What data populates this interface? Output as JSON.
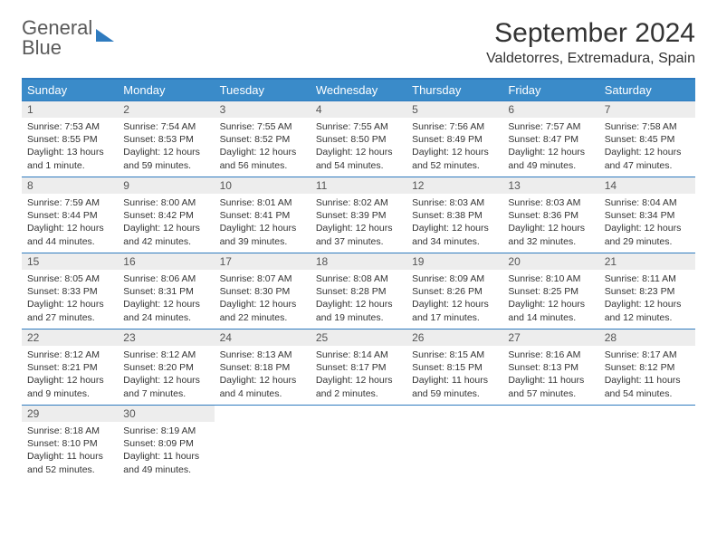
{
  "logo": {
    "text_top": "General",
    "text_bottom": "Blue"
  },
  "title": "September 2024",
  "location": "Valdetorres, Extremadura, Spain",
  "colors": {
    "header_bg": "#3a8bc9",
    "header_text": "#ffffff",
    "border": "#2f7bbf",
    "daynum_bg": "#ededed",
    "text": "#333333"
  },
  "typography": {
    "title_fontsize": 30,
    "location_fontsize": 16,
    "header_fontsize": 13,
    "body_fontsize": 10.5
  },
  "weekdays": [
    "Sunday",
    "Monday",
    "Tuesday",
    "Wednesday",
    "Thursday",
    "Friday",
    "Saturday"
  ],
  "weeks": [
    [
      {
        "n": "1",
        "sunrise": "Sunrise: 7:53 AM",
        "sunset": "Sunset: 8:55 PM",
        "daylight": "Daylight: 13 hours and 1 minute."
      },
      {
        "n": "2",
        "sunrise": "Sunrise: 7:54 AM",
        "sunset": "Sunset: 8:53 PM",
        "daylight": "Daylight: 12 hours and 59 minutes."
      },
      {
        "n": "3",
        "sunrise": "Sunrise: 7:55 AM",
        "sunset": "Sunset: 8:52 PM",
        "daylight": "Daylight: 12 hours and 56 minutes."
      },
      {
        "n": "4",
        "sunrise": "Sunrise: 7:55 AM",
        "sunset": "Sunset: 8:50 PM",
        "daylight": "Daylight: 12 hours and 54 minutes."
      },
      {
        "n": "5",
        "sunrise": "Sunrise: 7:56 AM",
        "sunset": "Sunset: 8:49 PM",
        "daylight": "Daylight: 12 hours and 52 minutes."
      },
      {
        "n": "6",
        "sunrise": "Sunrise: 7:57 AM",
        "sunset": "Sunset: 8:47 PM",
        "daylight": "Daylight: 12 hours and 49 minutes."
      },
      {
        "n": "7",
        "sunrise": "Sunrise: 7:58 AM",
        "sunset": "Sunset: 8:45 PM",
        "daylight": "Daylight: 12 hours and 47 minutes."
      }
    ],
    [
      {
        "n": "8",
        "sunrise": "Sunrise: 7:59 AM",
        "sunset": "Sunset: 8:44 PM",
        "daylight": "Daylight: 12 hours and 44 minutes."
      },
      {
        "n": "9",
        "sunrise": "Sunrise: 8:00 AM",
        "sunset": "Sunset: 8:42 PM",
        "daylight": "Daylight: 12 hours and 42 minutes."
      },
      {
        "n": "10",
        "sunrise": "Sunrise: 8:01 AM",
        "sunset": "Sunset: 8:41 PM",
        "daylight": "Daylight: 12 hours and 39 minutes."
      },
      {
        "n": "11",
        "sunrise": "Sunrise: 8:02 AM",
        "sunset": "Sunset: 8:39 PM",
        "daylight": "Daylight: 12 hours and 37 minutes."
      },
      {
        "n": "12",
        "sunrise": "Sunrise: 8:03 AM",
        "sunset": "Sunset: 8:38 PM",
        "daylight": "Daylight: 12 hours and 34 minutes."
      },
      {
        "n": "13",
        "sunrise": "Sunrise: 8:03 AM",
        "sunset": "Sunset: 8:36 PM",
        "daylight": "Daylight: 12 hours and 32 minutes."
      },
      {
        "n": "14",
        "sunrise": "Sunrise: 8:04 AM",
        "sunset": "Sunset: 8:34 PM",
        "daylight": "Daylight: 12 hours and 29 minutes."
      }
    ],
    [
      {
        "n": "15",
        "sunrise": "Sunrise: 8:05 AM",
        "sunset": "Sunset: 8:33 PM",
        "daylight": "Daylight: 12 hours and 27 minutes."
      },
      {
        "n": "16",
        "sunrise": "Sunrise: 8:06 AM",
        "sunset": "Sunset: 8:31 PM",
        "daylight": "Daylight: 12 hours and 24 minutes."
      },
      {
        "n": "17",
        "sunrise": "Sunrise: 8:07 AM",
        "sunset": "Sunset: 8:30 PM",
        "daylight": "Daylight: 12 hours and 22 minutes."
      },
      {
        "n": "18",
        "sunrise": "Sunrise: 8:08 AM",
        "sunset": "Sunset: 8:28 PM",
        "daylight": "Daylight: 12 hours and 19 minutes."
      },
      {
        "n": "19",
        "sunrise": "Sunrise: 8:09 AM",
        "sunset": "Sunset: 8:26 PM",
        "daylight": "Daylight: 12 hours and 17 minutes."
      },
      {
        "n": "20",
        "sunrise": "Sunrise: 8:10 AM",
        "sunset": "Sunset: 8:25 PM",
        "daylight": "Daylight: 12 hours and 14 minutes."
      },
      {
        "n": "21",
        "sunrise": "Sunrise: 8:11 AM",
        "sunset": "Sunset: 8:23 PM",
        "daylight": "Daylight: 12 hours and 12 minutes."
      }
    ],
    [
      {
        "n": "22",
        "sunrise": "Sunrise: 8:12 AM",
        "sunset": "Sunset: 8:21 PM",
        "daylight": "Daylight: 12 hours and 9 minutes."
      },
      {
        "n": "23",
        "sunrise": "Sunrise: 8:12 AM",
        "sunset": "Sunset: 8:20 PM",
        "daylight": "Daylight: 12 hours and 7 minutes."
      },
      {
        "n": "24",
        "sunrise": "Sunrise: 8:13 AM",
        "sunset": "Sunset: 8:18 PM",
        "daylight": "Daylight: 12 hours and 4 minutes."
      },
      {
        "n": "25",
        "sunrise": "Sunrise: 8:14 AM",
        "sunset": "Sunset: 8:17 PM",
        "daylight": "Daylight: 12 hours and 2 minutes."
      },
      {
        "n": "26",
        "sunrise": "Sunrise: 8:15 AM",
        "sunset": "Sunset: 8:15 PM",
        "daylight": "Daylight: 11 hours and 59 minutes."
      },
      {
        "n": "27",
        "sunrise": "Sunrise: 8:16 AM",
        "sunset": "Sunset: 8:13 PM",
        "daylight": "Daylight: 11 hours and 57 minutes."
      },
      {
        "n": "28",
        "sunrise": "Sunrise: 8:17 AM",
        "sunset": "Sunset: 8:12 PM",
        "daylight": "Daylight: 11 hours and 54 minutes."
      }
    ],
    [
      {
        "n": "29",
        "sunrise": "Sunrise: 8:18 AM",
        "sunset": "Sunset: 8:10 PM",
        "daylight": "Daylight: 11 hours and 52 minutes."
      },
      {
        "n": "30",
        "sunrise": "Sunrise: 8:19 AM",
        "sunset": "Sunset: 8:09 PM",
        "daylight": "Daylight: 11 hours and 49 minutes."
      },
      null,
      null,
      null,
      null,
      null
    ]
  ]
}
